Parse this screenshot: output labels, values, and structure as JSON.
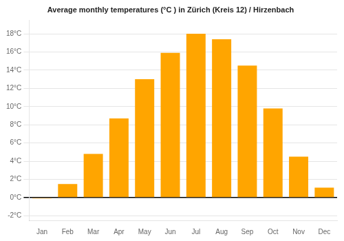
{
  "chart_data": {
    "type": "bar",
    "title": "Average monthly temperatures (°C ) in Zürich (Kreis 12) / Hirzenbach",
    "categories": [
      "Jan",
      "Feb",
      "Mar",
      "Apr",
      "May",
      "Jun",
      "Jul",
      "Aug",
      "Sep",
      "Oct",
      "Nov",
      "Dec"
    ],
    "values": [
      -0.1,
      1.5,
      4.8,
      8.7,
      13.0,
      15.9,
      18.0,
      17.4,
      14.5,
      9.8,
      4.5,
      1.1
    ],
    "color": "#FFA500",
    "ylim": [
      -2.5,
      19.5
    ],
    "yticks": [
      {
        "value": -2,
        "label": "-2°C"
      },
      {
        "value": 0,
        "label": "0°C"
      },
      {
        "value": 2,
        "label": "2°C"
      },
      {
        "value": 4,
        "label": "4°C"
      },
      {
        "value": 6,
        "label": "6°C"
      },
      {
        "value": 8,
        "label": "8°C"
      },
      {
        "value": 10,
        "label": "10°C"
      },
      {
        "value": 12,
        "label": "12°C"
      },
      {
        "value": 14,
        "label": "14°C"
      },
      {
        "value": 16,
        "label": "16°C"
      },
      {
        "value": 18,
        "label": "18°C"
      }
    ],
    "grid": true
  }
}
